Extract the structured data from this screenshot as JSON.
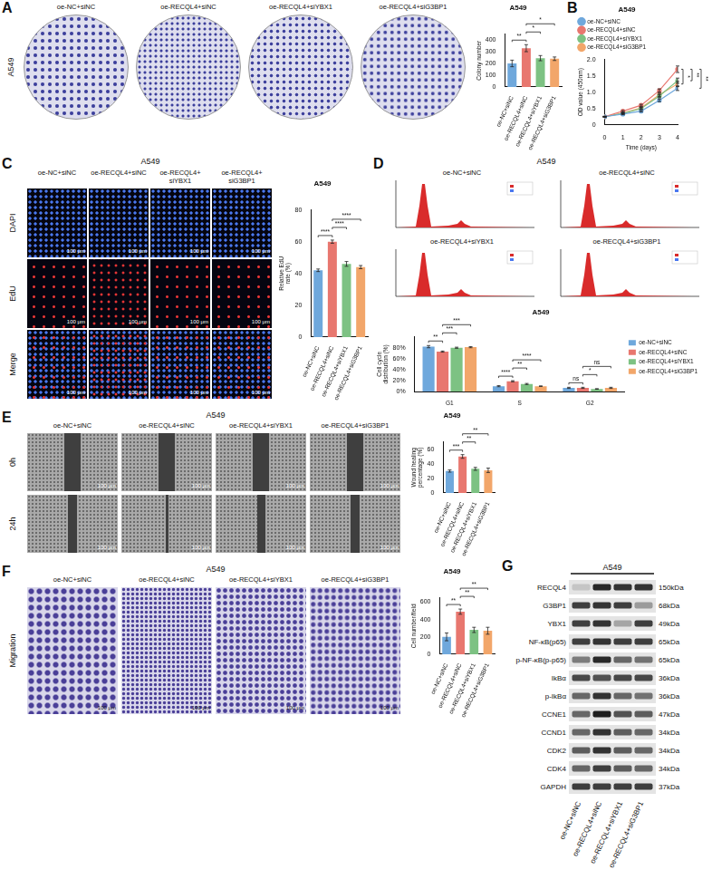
{
  "chart_data": [
    {
      "type": "bar",
      "title": "A549",
      "y_label": "Colony number",
      "categories": [
        "oe-NC+siNC",
        "oe-RECQL4+siNC",
        "oe-RECQL4+siYBX1",
        "oe-RECQL4+siG3BP1"
      ],
      "values": [
        200,
        330,
        245,
        240
      ],
      "errors": [
        28,
        30,
        22,
        15
      ],
      "colors": [
        "#6fa8dc",
        "#e8776f",
        "#7dc283",
        "#f2a66a"
      ],
      "ylim": [
        0,
        450
      ],
      "yticks": [
        0,
        100,
        200,
        300,
        400
      ],
      "grid": false,
      "annotations": [
        {
          "from": 0,
          "to": 1,
          "text": "**"
        },
        {
          "from": 1,
          "to": 2,
          "text": "*"
        },
        {
          "from": 1,
          "to": 3,
          "text": "*"
        }
      ]
    },
    {
      "type": "line",
      "title": "A549",
      "x_label": "Time (days)",
      "y_label": "OD value (450nm)",
      "x": [
        0,
        1,
        2,
        3,
        4
      ],
      "series": [
        {
          "name": "oe-NC+siNC",
          "color": "#6fa8dc",
          "values": [
            0.25,
            0.33,
            0.42,
            0.75,
            1.12
          ],
          "errors": [
            0.01,
            0.02,
            0.02,
            0.04,
            0.07
          ]
        },
        {
          "name": "oe-RECQL4+siNC",
          "color": "#e8776f",
          "values": [
            0.25,
            0.42,
            0.6,
            1.05,
            1.7
          ],
          "errors": [
            0.01,
            0.02,
            0.03,
            0.05,
            0.1
          ]
        },
        {
          "name": "oe-RECQL4+siYBX1",
          "color": "#7dc283",
          "values": [
            0.25,
            0.35,
            0.5,
            0.88,
            1.35
          ],
          "errors": [
            0.01,
            0.02,
            0.03,
            0.05,
            0.08
          ]
        },
        {
          "name": "oe-RECQL4+siG3BP1",
          "color": "#f2a66a",
          "values": [
            0.25,
            0.36,
            0.52,
            0.92,
            1.25
          ],
          "errors": [
            0.01,
            0.02,
            0.03,
            0.05,
            0.08
          ]
        }
      ],
      "xlim": [
        0,
        4
      ],
      "xticks": [
        0,
        1,
        2,
        3,
        4
      ],
      "ylim": [
        0,
        2
      ],
      "yticks": [
        0,
        0.5,
        {
          "value": 1,
          "label": "1.0"
        },
        1.5,
        {
          "value": 2,
          "label": "2.0"
        }
      ],
      "grid": false,
      "legend": "top",
      "marker": "circle",
      "annotations": [
        {
          "from": 1,
          "to": 3,
          "text": "*"
        },
        {
          "from": 1,
          "to": 2,
          "text": "**"
        },
        {
          "from": 1,
          "to": 0,
          "text": "**"
        }
      ]
    },
    {
      "type": "bar",
      "title": "A549",
      "y_label": "Relative EdU rate (%)",
      "categories": [
        "oe-NC+siNC",
        "oe-RECQL4+siNC",
        "oe-RECQL4+siYBX1",
        "oe-RECQL4+siG3BP1"
      ],
      "values": [
        42,
        60,
        46,
        44
      ],
      "errors": [
        0.8,
        1,
        1.5,
        1
      ],
      "colors": [
        "#6fa8dc",
        "#e8776f",
        "#7dc283",
        "#f2a66a"
      ],
      "ylim": [
        0,
        80
      ],
      "yticks": [
        0,
        20,
        40,
        60,
        80
      ],
      "grid": false,
      "annotations": [
        {
          "from": 0,
          "to": 1,
          "text": "****"
        },
        {
          "from": 1,
          "to": 2,
          "text": "****"
        },
        {
          "from": 1,
          "to": 3,
          "text": "****"
        }
      ]
    },
    {
      "type": "bar",
      "title": "A549",
      "y_label": "Cell cycle distribution (%)",
      "categories": [
        "G1",
        "S",
        "G2"
      ],
      "series": [
        {
          "name": "oe-NC+siNC",
          "color": "#6fa8dc",
          "values": [
            82,
            10,
            7
          ],
          "errors": [
            2,
            1,
            1
          ]
        },
        {
          "name": "oe-RECQL4+siNC",
          "color": "#e8776f",
          "values": [
            73,
            19,
            7
          ],
          "errors": [
            1,
            1,
            1
          ]
        },
        {
          "name": "oe-RECQL4+siYBX1",
          "color": "#7dc283",
          "values": [
            80,
            14,
            5
          ],
          "errors": [
            1,
            1,
            0.5
          ]
        },
        {
          "name": "oe-RECQL4+siG3BP1",
          "color": "#f2a66a",
          "values": [
            81,
            10,
            7
          ],
          "errors": [
            1,
            0.5,
            1
          ]
        }
      ],
      "ylim": [
        0,
        100
      ],
      "yticks": [
        {
          "value": 0,
          "label": "0%"
        },
        {
          "value": 20,
          "label": "20%"
        },
        {
          "value": 40,
          "label": "40%"
        },
        {
          "value": 60,
          "label": "60%"
        },
        {
          "value": 80,
          "label": "80%"
        }
      ],
      "grid": false,
      "legend": "right",
      "annotations": [
        {
          "category": 0,
          "from": 1,
          "to": 0,
          "text": "**"
        },
        {
          "category": 0,
          "from": 1,
          "to": 2,
          "text": "***"
        },
        {
          "category": 0,
          "from": 1,
          "to": 3,
          "text": "***"
        },
        {
          "category": 1,
          "from": 1,
          "to": 0,
          "text": "****"
        },
        {
          "category": 1,
          "from": 1,
          "to": 2,
          "text": "**"
        },
        {
          "category": 1,
          "from": 1,
          "to": 3,
          "text": "****"
        },
        {
          "category": 2,
          "from": 1,
          "to": 0,
          "text": "ns"
        },
        {
          "category": 2,
          "from": 1,
          "to": 2,
          "text": "*"
        },
        {
          "category": 2,
          "from": 1,
          "to": 3,
          "text": "ns"
        }
      ]
    },
    {
      "type": "bar",
      "title": "A549",
      "y_label": "Wound healing percentage (%)",
      "categories": [
        "oe-NC+siNC",
        "oe-RECQL4+siNC",
        "oe-RECQL4+siYBX1",
        "oe-RECQL4+siG3BP1"
      ],
      "values": [
        30,
        50,
        33,
        31
      ],
      "errors": [
        1.5,
        2.5,
        2,
        3
      ],
      "colors": [
        "#6fa8dc",
        "#e8776f",
        "#7dc283",
        "#f2a66a"
      ],
      "ylim": [
        0,
        70
      ],
      "yticks": [
        0,
        20,
        40,
        60
      ],
      "grid": false,
      "annotations": [
        {
          "from": 0,
          "to": 1,
          "text": "***"
        },
        {
          "from": 1,
          "to": 2,
          "text": "**"
        },
        {
          "from": 1,
          "to": 3,
          "text": "**"
        }
      ]
    },
    {
      "type": "bar",
      "title": "A549",
      "y_label": "Cell number/field",
      "categories": [
        "oe-NC+siNC",
        "oe-RECQL4+siNC",
        "oe-RECQL4+siYBX1",
        "oe-RECQL4+siG3BP1"
      ],
      "values": [
        200,
        490,
        280,
        270
      ],
      "errors": [
        45,
        30,
        30,
        40
      ],
      "colors": [
        "#6fa8dc",
        "#e8776f",
        "#7dc283",
        "#f2a66a"
      ],
      "ylim": [
        0,
        650
      ],
      "yticks": [
        0,
        200,
        400,
        600
      ],
      "grid": false,
      "annotations": [
        {
          "from": 0,
          "to": 1,
          "text": "**"
        },
        {
          "from": 1,
          "to": 2,
          "text": "**"
        },
        {
          "from": 1,
          "to": 3,
          "text": "**"
        }
      ]
    }
  ],
  "figure": {
    "A": {
      "letter": "A",
      "row_label": "A549",
      "columns": [
        "oe-NC+siNC",
        "oe-RECQL4+siNC",
        "oe-RECQL4+siYBX1",
        "oe-RECQL4+siG3BP1"
      ]
    },
    "B": {
      "letter": "B"
    },
    "C": {
      "letter": "C",
      "header": "A549",
      "columns": [
        "oe-NC+siNC",
        "oe-RECQL4+siNC",
        "oe-RECQL4+siYBX1",
        "oe-RECQL4+siG3BP1"
      ],
      "rows": [
        "DAPI",
        "EdU",
        "Merge"
      ],
      "scale_bar": "100 μm"
    },
    "D": {
      "letter": "D",
      "header": "A549",
      "panels": [
        "oe-NC+siNC",
        "oe-RECQL4+siNC",
        "oe-RECQL4+siYBX1",
        "oe-RECQL4+siG3BP1"
      ]
    },
    "E": {
      "letter": "E",
      "header": "A549",
      "columns": [
        "oe-NC+siNC",
        "oe-RECQL4+siNC",
        "oe-RECQL4+siYBX1",
        "oe-RECQL4+siG3BP1"
      ],
      "rows": [
        "0h",
        "24h"
      ],
      "scale_bar": "100 μm"
    },
    "F": {
      "letter": "F",
      "header": "A549",
      "columns": [
        "oe-NC+siNC",
        "oe-RECQL4+siNC",
        "oe-RECQL4+siYBX1",
        "oe-RECQL4+siG3BP1"
      ],
      "rows": [
        "Migration"
      ],
      "scale_bar": "100 μm"
    },
    "G": {
      "letter": "G",
      "header": "A549",
      "lanes": [
        "oe-NC+siNC",
        "oe-RECQL4+siNC",
        "oe-RECQL4+siYBX1",
        "oe-RECQL4+siG3BP1"
      ],
      "proteins": [
        {
          "name": "RECQL4",
          "size": "150kDa",
          "intensity": [
            0.15,
            0.9,
            0.85,
            0.85
          ]
        },
        {
          "name": "G3BP1",
          "size": "68kDa",
          "intensity": [
            0.8,
            0.85,
            0.8,
            0.35
          ]
        },
        {
          "name": "YBX1",
          "size": "49kDa",
          "intensity": [
            0.8,
            0.85,
            0.3,
            0.8
          ]
        },
        {
          "name": "NF-κB(p65)",
          "size": "65kDa",
          "intensity": [
            0.8,
            0.85,
            0.8,
            0.8
          ]
        },
        {
          "name": "p-NF-κB(p-p65)",
          "size": "65kDa",
          "intensity": [
            0.5,
            0.9,
            0.6,
            0.55
          ]
        },
        {
          "name": "IkBα",
          "size": "36kDa",
          "intensity": [
            0.75,
            0.7,
            0.75,
            0.75
          ]
        },
        {
          "name": "p-IkBα",
          "size": "36kDa",
          "intensity": [
            0.6,
            0.85,
            0.6,
            0.55
          ]
        },
        {
          "name": "CCNE1",
          "size": "47kDa",
          "intensity": [
            0.6,
            0.95,
            0.7,
            0.65
          ]
        },
        {
          "name": "CCND1",
          "size": "34kDa",
          "intensity": [
            0.6,
            0.85,
            0.65,
            0.6
          ]
        },
        {
          "name": "CDK2",
          "size": "34kDa",
          "intensity": [
            0.65,
            0.85,
            0.65,
            0.6
          ]
        },
        {
          "name": "CDK4",
          "size": "34kDa",
          "intensity": [
            0.6,
            0.8,
            0.65,
            0.6
          ]
        },
        {
          "name": "GAPDH",
          "size": "37kDa",
          "intensity": [
            0.8,
            0.8,
            0.8,
            0.8
          ]
        }
      ]
    }
  }
}
